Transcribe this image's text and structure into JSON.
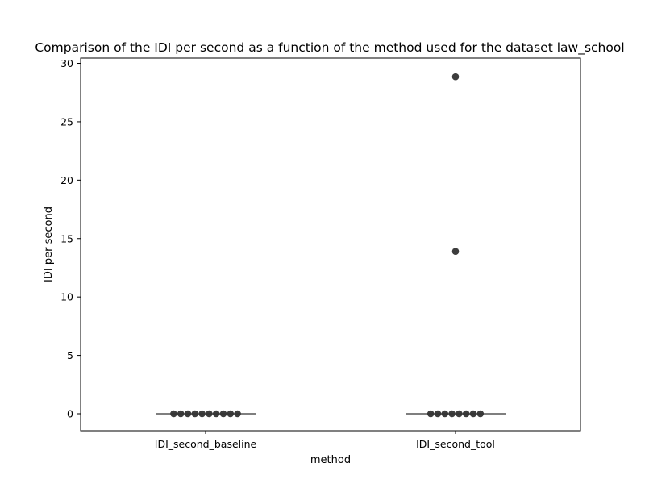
{
  "chart_data": {
    "type": "scatter",
    "title": "Comparison of the IDI per second as a function of the method used for the dataset law_school",
    "xlabel": "method",
    "ylabel": "IDI per second",
    "categories": [
      "IDI_second_baseline",
      "IDI_second_tool"
    ],
    "ylim": [
      -1.45,
      30.45
    ],
    "yticks": [
      0,
      5,
      10,
      15,
      20,
      25,
      30
    ],
    "grid": false,
    "legend": "none",
    "series": [
      {
        "category": "IDI_second_baseline",
        "values": [
          0,
          0,
          0,
          0,
          0,
          0,
          0,
          0,
          0,
          0
        ],
        "median": 0
      },
      {
        "category": "IDI_second_tool",
        "values": [
          0,
          0,
          0,
          0,
          0,
          0,
          0,
          0,
          13.9,
          28.85
        ],
        "median": 0
      }
    ],
    "colors": {
      "point": "#333333",
      "median_line": "#555555",
      "axis": "#000000"
    }
  }
}
